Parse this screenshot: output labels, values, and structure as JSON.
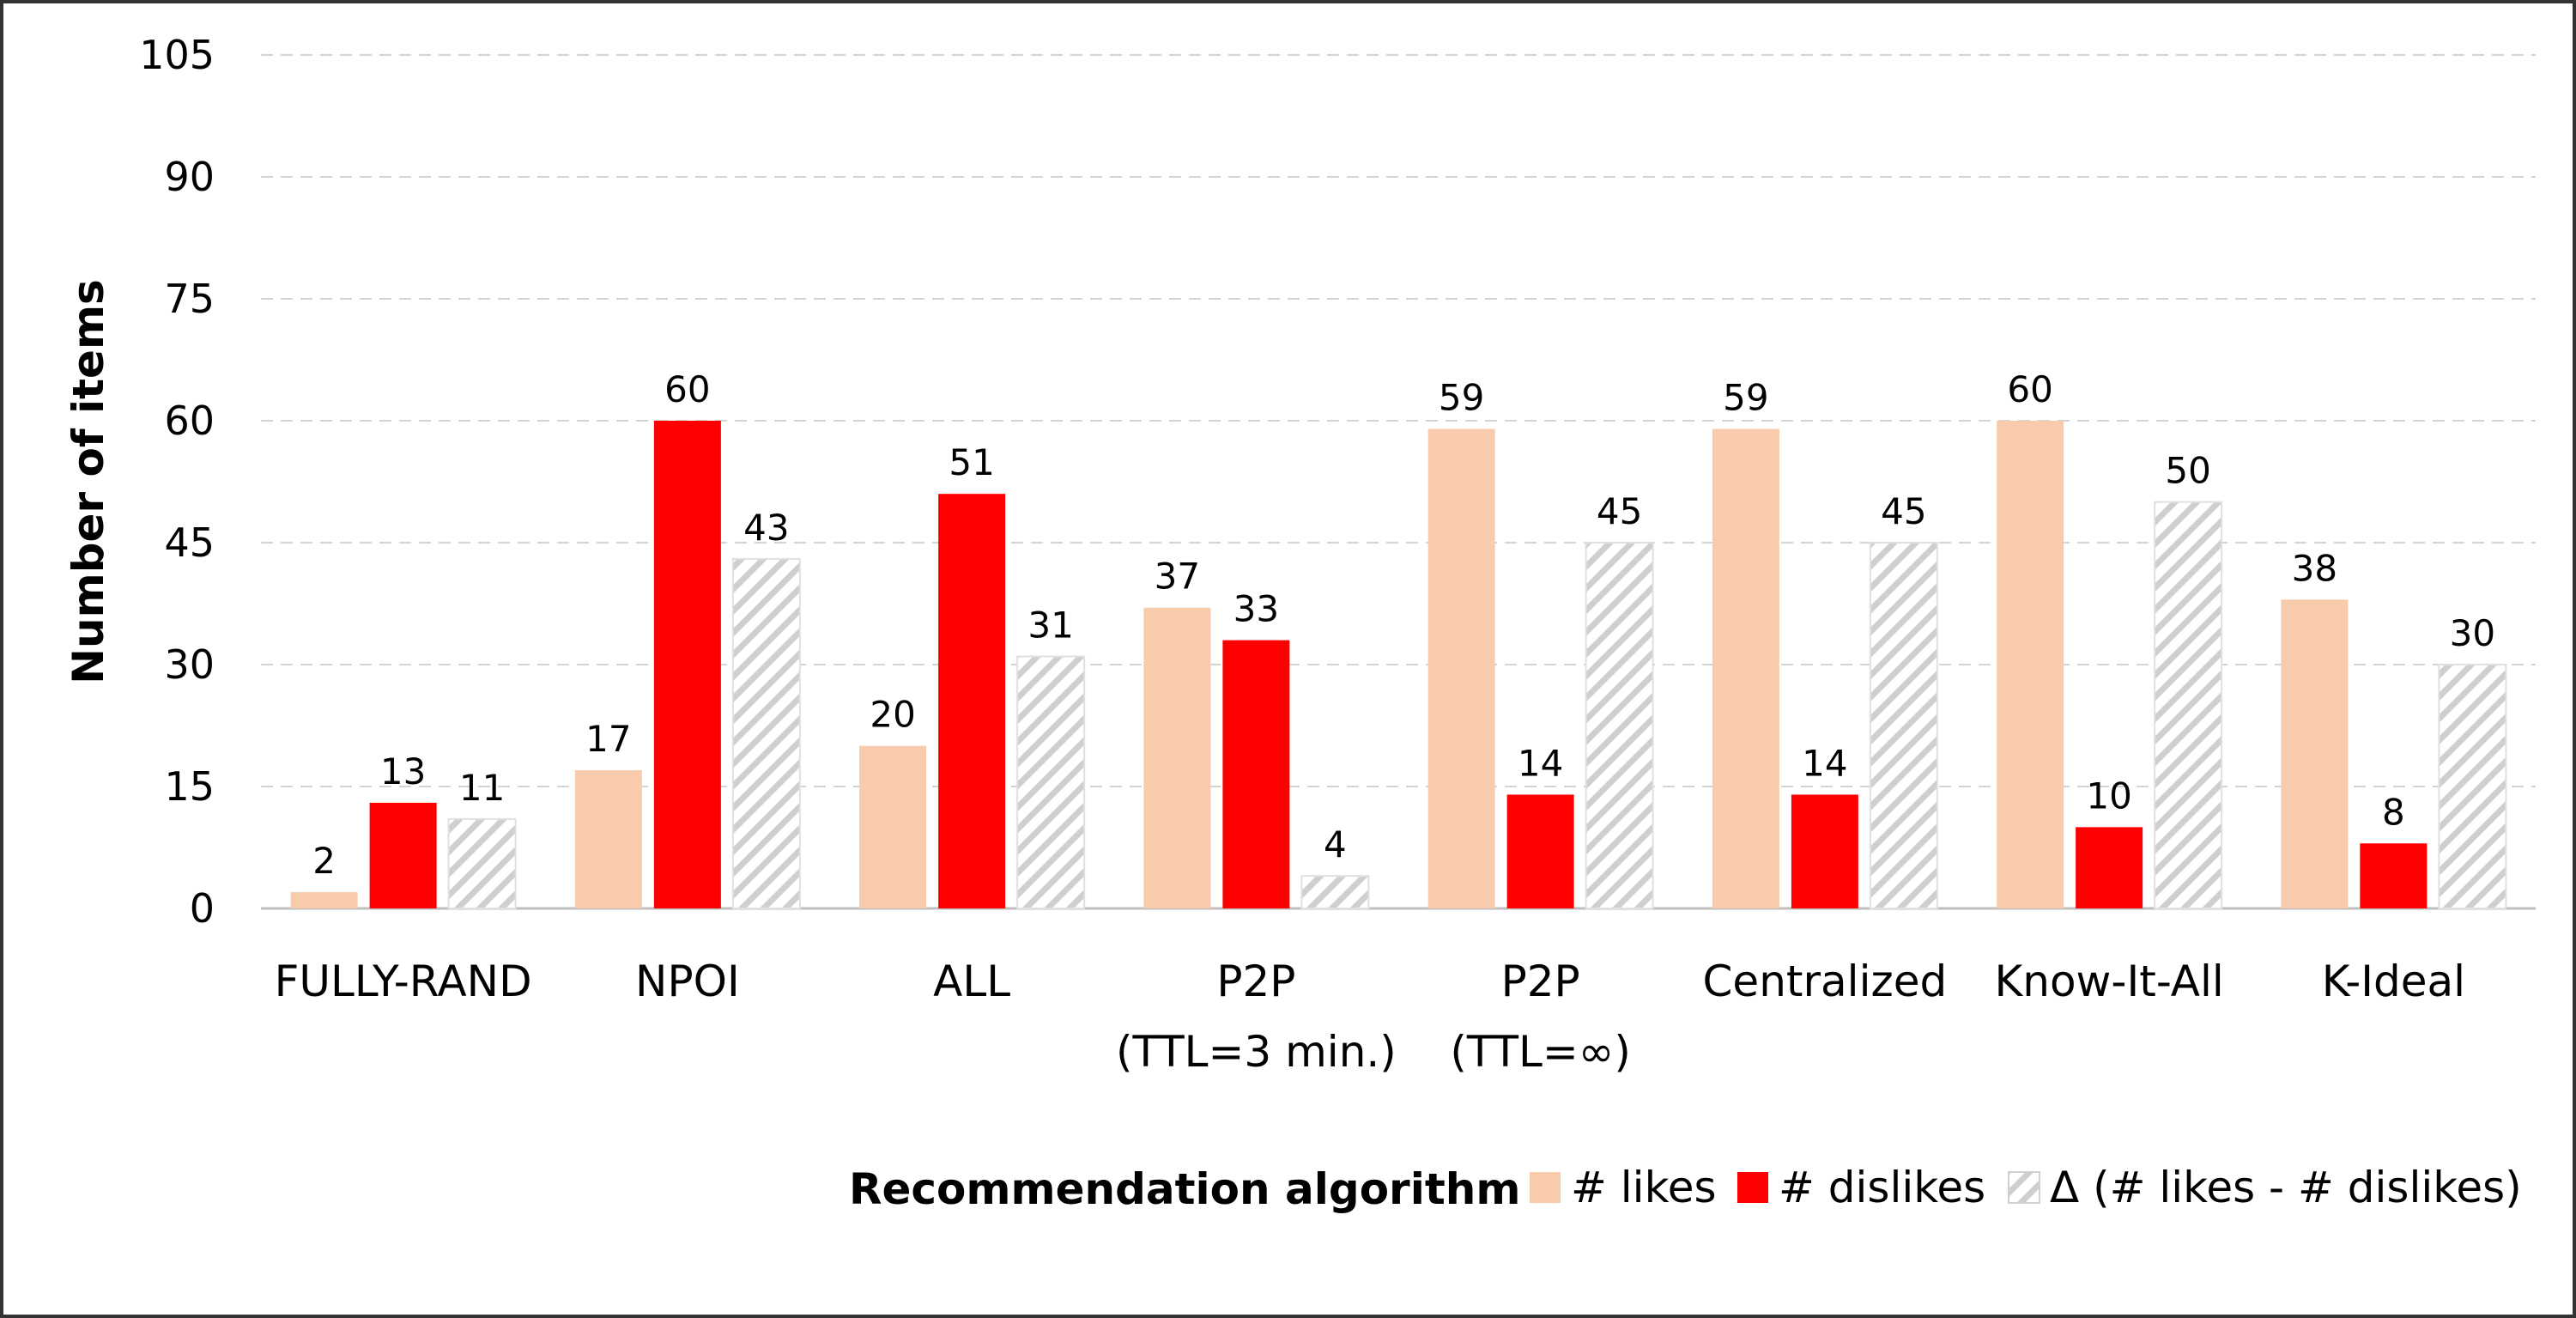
{
  "chart_data": {
    "type": "bar",
    "title": "",
    "xlabel": "",
    "ylabel": "Number of items",
    "ylim": [
      0,
      105
    ],
    "yticks": [
      0,
      15,
      30,
      45,
      60,
      75,
      90,
      105
    ],
    "grid": true,
    "categories": [
      [
        "FULLY-RAND"
      ],
      [
        "NPOI"
      ],
      [
        "ALL"
      ],
      [
        "P2P",
        "(TTL=3 min.)"
      ],
      [
        "P2P",
        "(TTL=∞)"
      ],
      [
        "Centralized"
      ],
      [
        "Know-It-All"
      ],
      [
        "K-Ideal"
      ]
    ],
    "series": [
      {
        "name": "# likes",
        "color": "#f8cbad",
        "pattern": "solid",
        "values": [
          2,
          17,
          20,
          37,
          59,
          59,
          60,
          38
        ]
      },
      {
        "name": "# dislikes",
        "color": "#ff0000",
        "pattern": "solid",
        "values": [
          13,
          60,
          51,
          33,
          14,
          14,
          10,
          8
        ]
      },
      {
        "name": "Δ (# likes - # dislikes)",
        "color": "#d9d9d9",
        "pattern": "diagonal-hatch",
        "values": [
          11,
          43,
          31,
          4,
          45,
          45,
          50,
          30
        ]
      }
    ],
    "legend": {
      "title": "Recommendation algorithm",
      "position": "bottom-right"
    },
    "data_labels": true
  }
}
